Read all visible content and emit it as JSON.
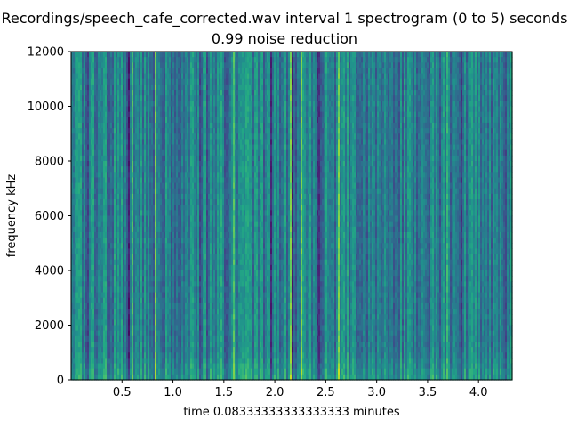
{
  "chart_data": {
    "type": "heatmap",
    "title_line1": "Recordings/speech_cafe_corrected.wav interval 1 spectrogram (0 to 5) seconds",
    "title_line2": "0.99 noise reduction",
    "xlabel": "time 0.08333333333333333 minutes",
    "ylabel": "frequency kHz",
    "xlim": [
      0.0,
      4.33
    ],
    "ylim": [
      0,
      12000
    ],
    "xticks": [
      0.5,
      1.0,
      1.5,
      2.0,
      2.5,
      3.0,
      3.5,
      4.0
    ],
    "xtick_labels": [
      "0.5",
      "1.0",
      "1.5",
      "2.0",
      "2.5",
      "3.0",
      "3.5",
      "4.0"
    ],
    "yticks": [
      0,
      2000,
      4000,
      6000,
      8000,
      10000,
      12000
    ],
    "ytick_labels": [
      "0",
      "2000",
      "4000",
      "6000",
      "8000",
      "10000",
      "12000"
    ],
    "colormap": "viridis",
    "grid": false,
    "colors": {
      "low": "#3b4f8c",
      "mid": "#21908d",
      "high": "#b8de29"
    },
    "notable_bright_time_columns": [
      0.82,
      2.15,
      2.26,
      2.62
    ]
  }
}
